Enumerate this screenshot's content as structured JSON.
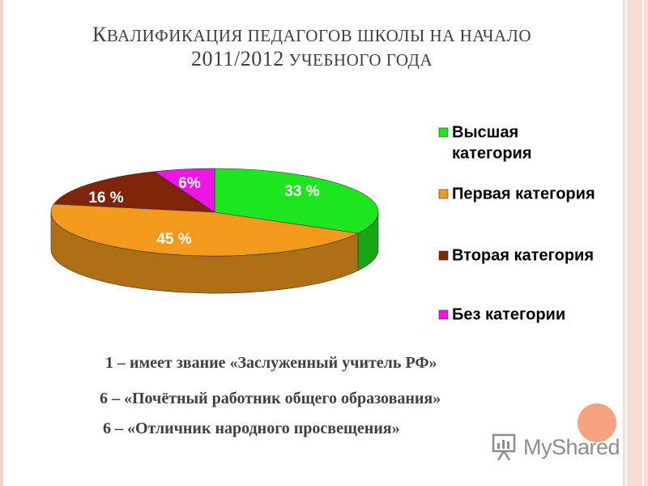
{
  "title": {
    "line1_cap": "К",
    "line1_rest": "валификация педагогов школы на начало",
    "line2_num": "2011/2012",
    "line2_rest": "учебного года"
  },
  "chart_data": {
    "type": "pie",
    "categories": [
      "Высшая категория",
      "Первая категория",
      "Вторая категория",
      "Без категории"
    ],
    "values": [
      33,
      45,
      16,
      6
    ],
    "labels": [
      "33 %",
      "45 %",
      "16 %",
      "6%"
    ],
    "colors": [
      "#1ee61e",
      "#f39a1c",
      "#7e2408",
      "#f014e6"
    ],
    "legend_entries": [
      {
        "line1": "Высшая",
        "line2": "категория"
      },
      {
        "line1": "Первая категория",
        "line2": ""
      },
      {
        "line1": "Вторая категория",
        "line2": ""
      },
      {
        "line1": "Без категории",
        "line2": ""
      }
    ],
    "legend_position": "right",
    "style": "3d"
  },
  "notes": [
    "1 – имеет звание «Заслуженный учитель РФ»",
    "6 – «Почётный работник общего образования»",
    "6 – «Отличник народного просвещения»"
  ],
  "watermark": {
    "icon": "presentation-board-icon",
    "text": "MyShared"
  }
}
